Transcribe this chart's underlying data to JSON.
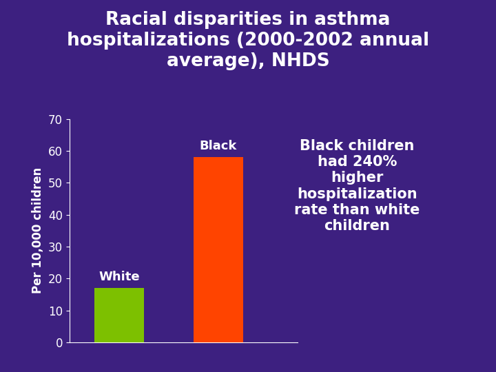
{
  "title": "Racial disparities in asthma\nhospitalizations (2000-2002 annual\naverage), NHDS",
  "categories": [
    "White",
    "Black"
  ],
  "values": [
    17,
    58
  ],
  "bar_colors": [
    "#7dc000",
    "#ff4400"
  ],
  "bar_labels": [
    "White",
    "Black"
  ],
  "ylabel": "Per 10,000 children",
  "ylim": [
    0,
    70
  ],
  "yticks": [
    0,
    10,
    20,
    30,
    40,
    50,
    60,
    70
  ],
  "annotation": "Black children\nhad 240%\nhigher\nhospitalization\nrate than white\nchildren",
  "background_color": "#3d2080",
  "text_color": "#ffffff",
  "title_fontsize": 19,
  "label_fontsize": 13,
  "tick_fontsize": 12,
  "annotation_fontsize": 15,
  "ylabel_fontsize": 12
}
